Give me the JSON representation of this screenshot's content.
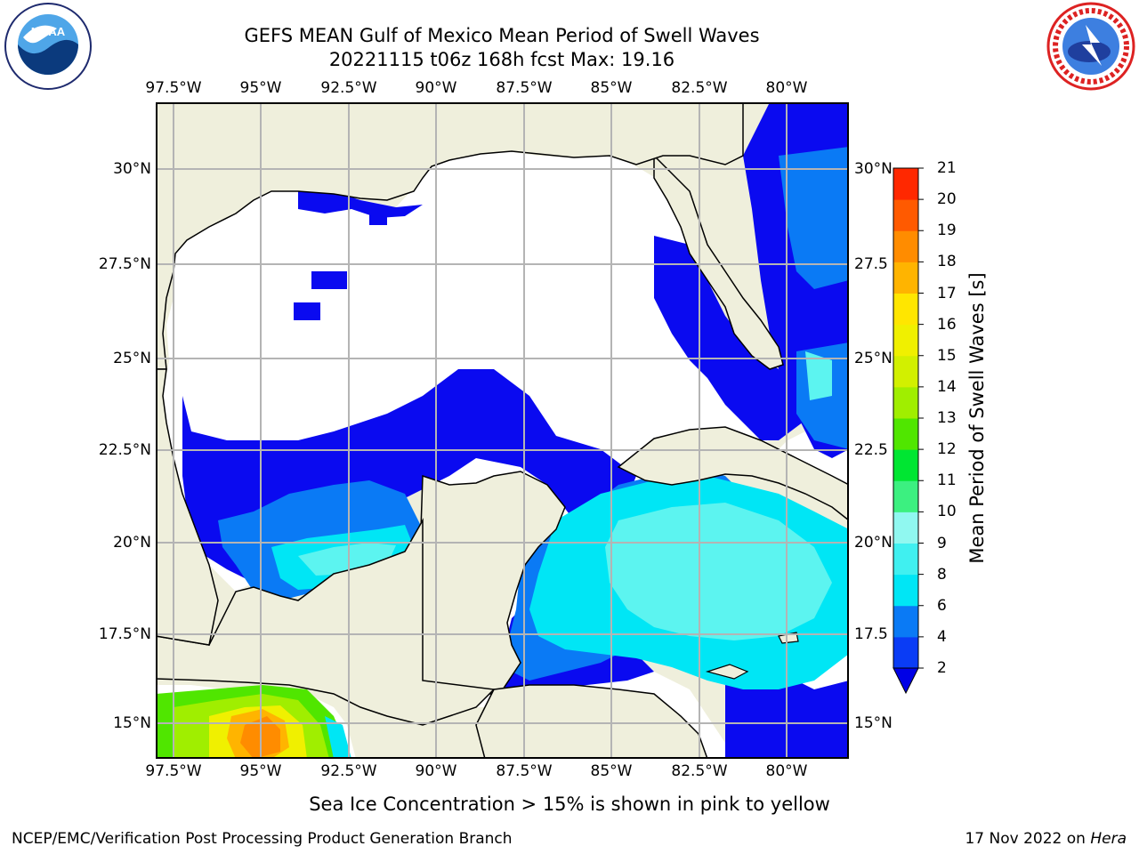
{
  "title": {
    "line1": "GEFS MEAN Gulf of Mexico Mean Period of Swell Waves",
    "line2": "20221115 t06z 168h fcst   Max: 19.16"
  },
  "logos": {
    "left": {
      "icon": "noaa-logo",
      "text": "NOAA"
    },
    "right": {
      "icon": "national-weather-service-logo"
    }
  },
  "map": {
    "projection": "lat-lon",
    "lon_labels": [
      "97.5°W",
      "95°W",
      "92.5°W",
      "90°W",
      "87.5°W",
      "85°W",
      "82.5°W",
      "80°W"
    ],
    "lat_labels_left": [
      "30°N",
      "27.5°N",
      "25°N",
      "22.5°N",
      "20°N",
      "17.5°N",
      "15°N"
    ],
    "lat_labels_right": [
      "30°N",
      "27.5",
      "25°N",
      "22.5",
      "20°N",
      "17.5",
      "15°N"
    ],
    "colors": {
      "land": "#efefdc",
      "ocean_missing": "#ffffff",
      "coast": "#000000",
      "grid": "#b4b4b4"
    }
  },
  "colorbar": {
    "label": "Mean Period of Swell Waves [s]",
    "tick_labels": [
      "2",
      "4",
      "6",
      "8",
      "9",
      "10",
      "11",
      "12",
      "13",
      "14",
      "15",
      "16",
      "17",
      "18",
      "19",
      "20",
      "21"
    ],
    "colors": [
      "#0a3cf5",
      "#0a7af5",
      "#00e6f5",
      "#40f0f0",
      "#90f8f0",
      "#3cf080",
      "#00e632",
      "#50e600",
      "#a0ee00",
      "#d2f000",
      "#f0f000",
      "#ffe600",
      "#ffb400",
      "#ff8c00",
      "#ff5a00",
      "#ff2800",
      "#ff0000"
    ],
    "extend_color": "#0000e6"
  },
  "footer": {
    "ice_note": "Sea Ice Concentration > 15% is shown in pink to yellow",
    "credit": "NCEP/EMC/Verification Post Processing Product Generation Branch",
    "date": "17 Nov 2022 on ",
    "machine": "Hera"
  }
}
